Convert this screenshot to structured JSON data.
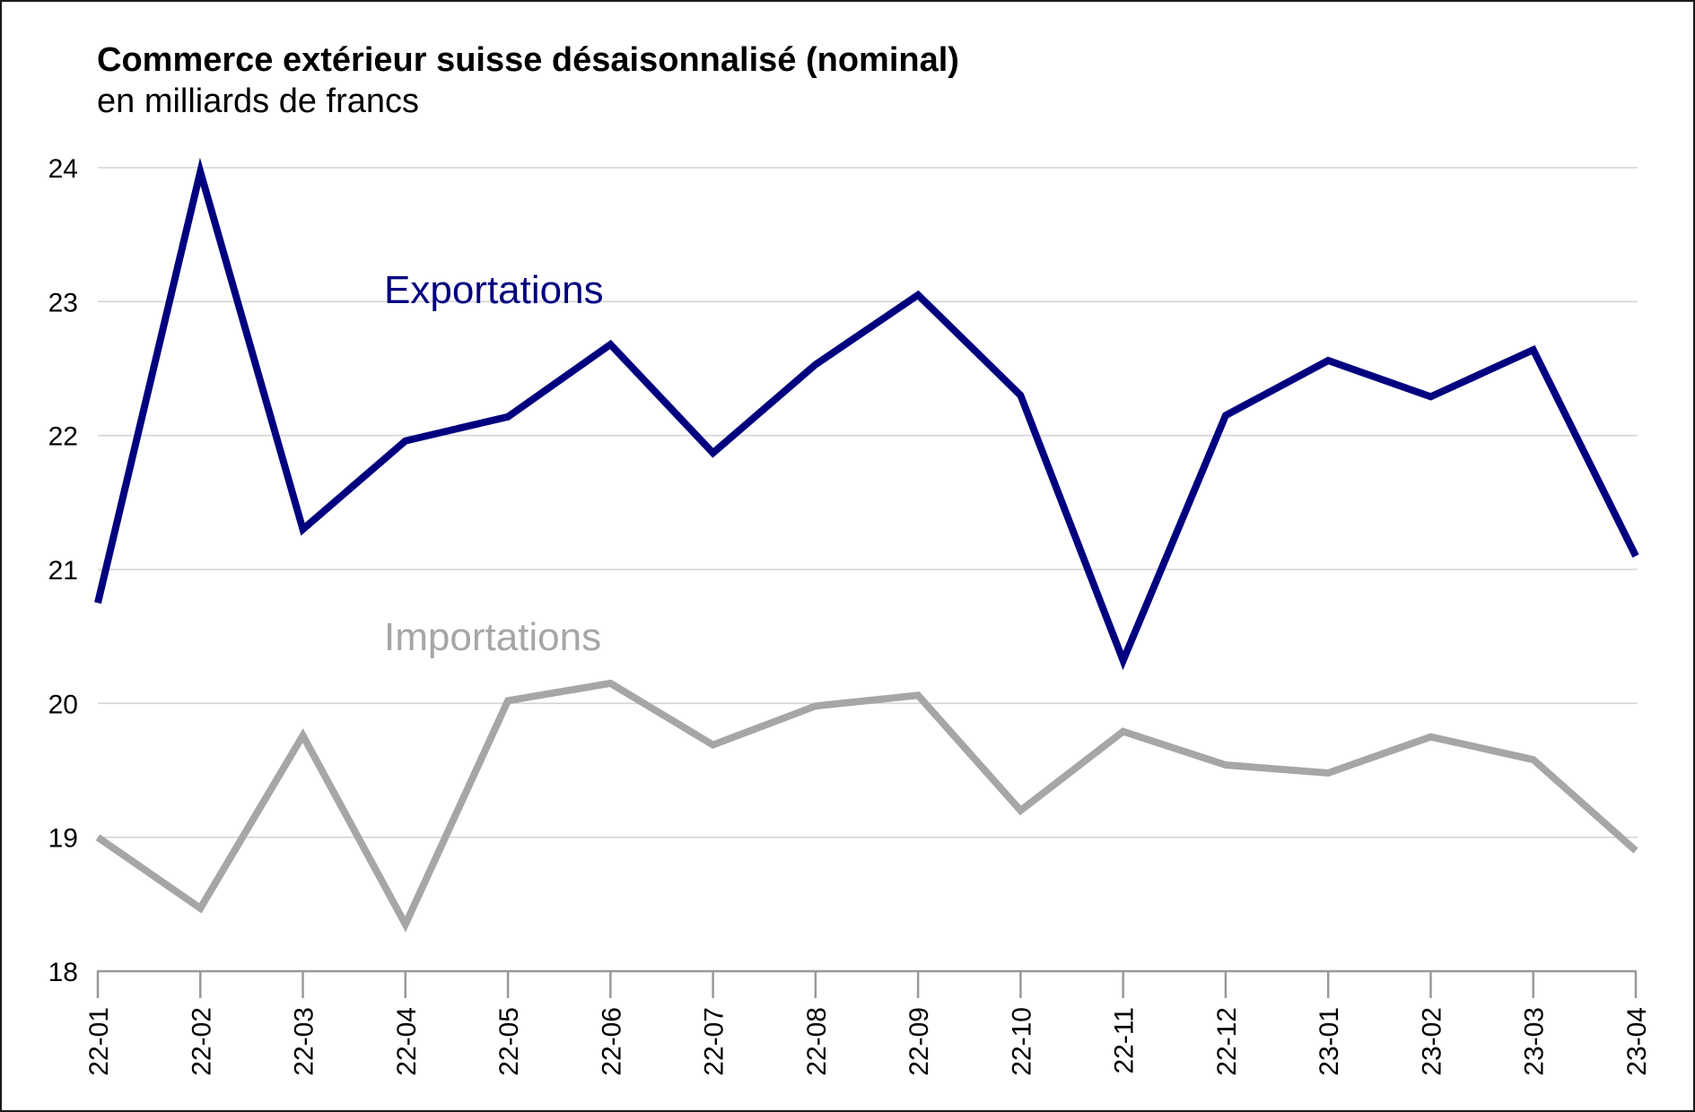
{
  "chart_data": {
    "type": "line",
    "title": "Commerce extérieur suisse désaisonnalisé (nominal)",
    "subtitle": "en milliards de francs",
    "xlabel": "",
    "ylabel": "",
    "categories": [
      "22-01",
      "22-02",
      "22-03",
      "22-04",
      "22-05",
      "22-06",
      "22-07",
      "22-08",
      "22-09",
      "22-10",
      "22-11",
      "22-12",
      "23-01",
      "23-02",
      "23-03",
      "23-04"
    ],
    "ylim": [
      18,
      24
    ],
    "yticks": [
      "18",
      "19",
      "20",
      "21",
      "22",
      "23",
      "24"
    ],
    "grid": true,
    "legend": "inline labels",
    "series": [
      {
        "name": "Exportations",
        "color": "#00007f",
        "values": [
          20.75,
          23.97,
          21.3,
          21.96,
          22.14,
          22.68,
          21.87,
          22.53,
          23.05,
          22.3,
          20.32,
          22.15,
          22.56,
          22.29,
          22.64,
          21.1
        ]
      },
      {
        "name": "Importations",
        "color": "#a6a6a6",
        "values": [
          19.0,
          18.47,
          19.76,
          18.35,
          20.02,
          20.15,
          19.69,
          19.98,
          20.06,
          19.2,
          19.79,
          19.54,
          19.48,
          19.75,
          19.58,
          18.9
        ]
      }
    ]
  }
}
